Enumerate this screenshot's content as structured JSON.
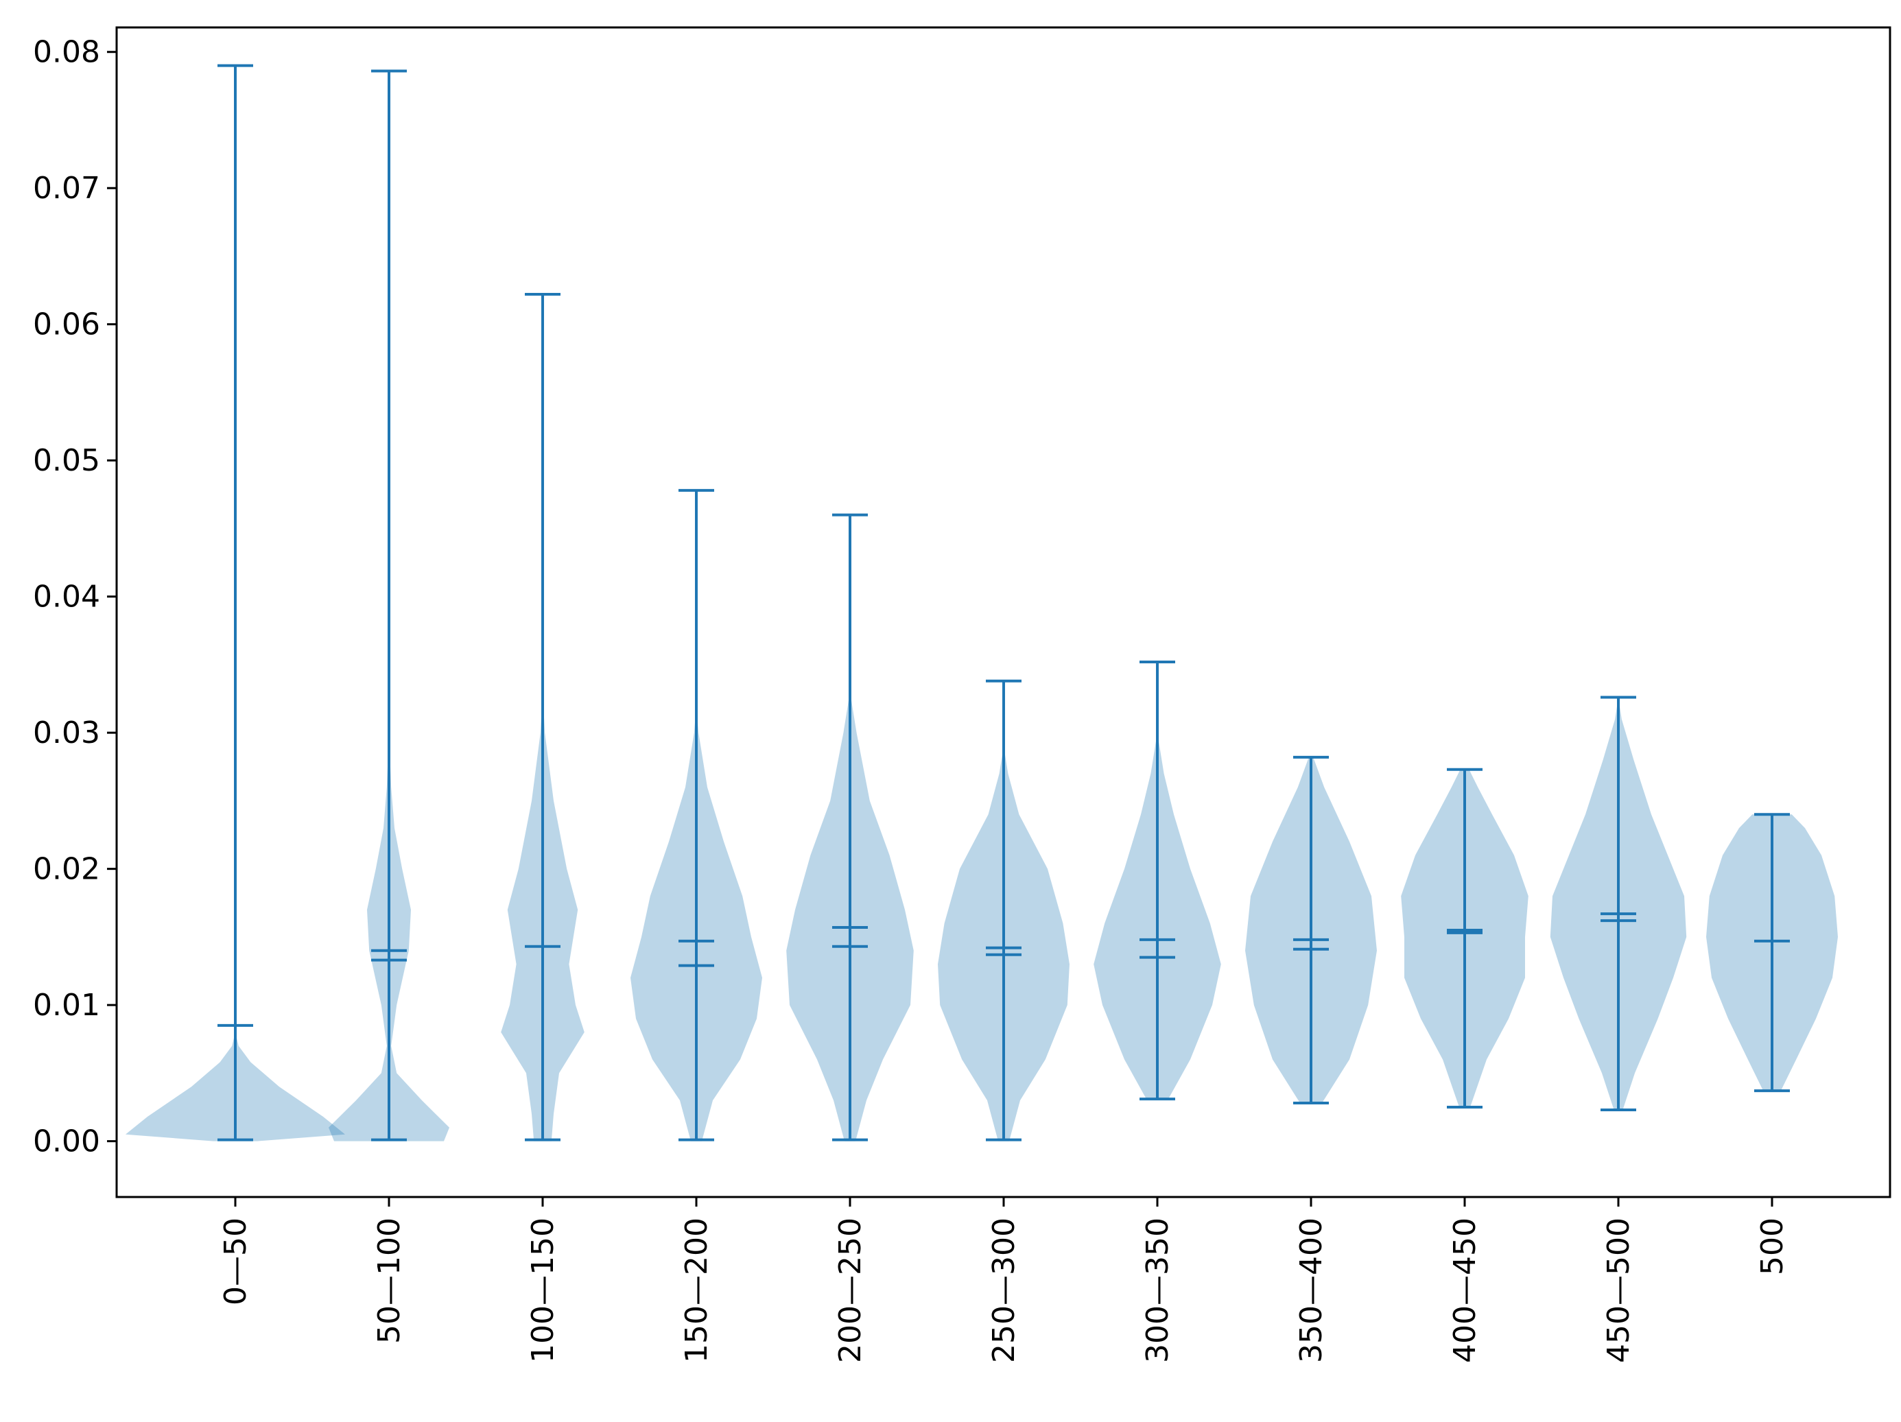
{
  "chart_data": {
    "type": "violin",
    "categories": [
      "0—50",
      "50—100",
      "100—150",
      "150—200",
      "200—250",
      "250—300",
      "300—350",
      "350—400",
      "400—450",
      "450—500",
      "500"
    ],
    "ylim": [
      -0.0041,
      0.0818
    ],
    "yticks": [
      0.0,
      0.01,
      0.02,
      0.03,
      0.04,
      0.05,
      0.06,
      0.07,
      0.08
    ],
    "ytick_labels": [
      "0.00",
      "0.01",
      "0.02",
      "0.03",
      "0.04",
      "0.05",
      "0.06",
      "0.07",
      "0.08"
    ],
    "title": "",
    "xlabel": "",
    "ylabel": "",
    "grid": false,
    "colors": {
      "body": "#1f77b4",
      "body_alpha": 0.3,
      "lines": "#1f77b4"
    },
    "violins": [
      {
        "min": 0.0001,
        "max": 0.079,
        "mean": 0.0085,
        "median": null,
        "profile": [
          [
            0.0,
            0.2
          ],
          [
            0.0005,
            1.0
          ],
          [
            0.0018,
            0.8
          ],
          [
            0.004,
            0.4
          ],
          [
            0.0058,
            0.14
          ],
          [
            0.007,
            0.03
          ],
          [
            0.008,
            0.0
          ]
        ]
      },
      {
        "min": 0.0001,
        "max": 0.0786,
        "mean": 0.014,
        "median": 0.0133,
        "profile": [
          [
            0.0,
            0.5
          ],
          [
            0.001,
            0.55
          ],
          [
            0.003,
            0.3
          ],
          [
            0.005,
            0.07
          ],
          [
            0.007,
            0.02
          ],
          [
            0.01,
            0.07
          ],
          [
            0.014,
            0.18
          ],
          [
            0.017,
            0.2
          ],
          [
            0.02,
            0.12
          ],
          [
            0.023,
            0.05
          ],
          [
            0.026,
            0.02
          ],
          [
            0.03,
            0.0
          ]
        ]
      },
      {
        "min": 0.0001,
        "max": 0.0622,
        "mean": 0.0143,
        "median": null,
        "profile": [
          [
            0.0,
            0.08
          ],
          [
            0.002,
            0.1
          ],
          [
            0.005,
            0.15
          ],
          [
            0.008,
            0.38
          ],
          [
            0.01,
            0.3
          ],
          [
            0.013,
            0.24
          ],
          [
            0.017,
            0.32
          ],
          [
            0.02,
            0.22
          ],
          [
            0.025,
            0.1
          ],
          [
            0.03,
            0.02
          ],
          [
            0.033,
            0.0
          ]
        ]
      },
      {
        "min": 0.0001,
        "max": 0.0478,
        "mean": 0.0147,
        "median": 0.0129,
        "profile": [
          [
            0.0,
            0.05
          ],
          [
            0.003,
            0.15
          ],
          [
            0.006,
            0.4
          ],
          [
            0.009,
            0.55
          ],
          [
            0.012,
            0.6
          ],
          [
            0.015,
            0.5
          ],
          [
            0.018,
            0.42
          ],
          [
            0.022,
            0.25
          ],
          [
            0.026,
            0.1
          ],
          [
            0.03,
            0.02
          ],
          [
            0.032,
            0.0
          ]
        ]
      },
      {
        "min": 0.0001,
        "max": 0.046,
        "mean": 0.0157,
        "median": 0.0143,
        "profile": [
          [
            0.0,
            0.05
          ],
          [
            0.003,
            0.15
          ],
          [
            0.006,
            0.3
          ],
          [
            0.01,
            0.55
          ],
          [
            0.014,
            0.58
          ],
          [
            0.017,
            0.5
          ],
          [
            0.021,
            0.36
          ],
          [
            0.025,
            0.18
          ],
          [
            0.03,
            0.06
          ],
          [
            0.033,
            0.0
          ]
        ]
      },
      {
        "min": 0.0001,
        "max": 0.0338,
        "mean": 0.0142,
        "median": 0.0137,
        "profile": [
          [
            0.0,
            0.05
          ],
          [
            0.003,
            0.15
          ],
          [
            0.006,
            0.38
          ],
          [
            0.01,
            0.58
          ],
          [
            0.013,
            0.6
          ],
          [
            0.016,
            0.54
          ],
          [
            0.02,
            0.4
          ],
          [
            0.024,
            0.14
          ],
          [
            0.027,
            0.04
          ],
          [
            0.029,
            0.0
          ]
        ]
      },
      {
        "min": 0.0031,
        "max": 0.0352,
        "mean": 0.0148,
        "median": 0.0135,
        "profile": [
          [
            0.0031,
            0.1
          ],
          [
            0.006,
            0.3
          ],
          [
            0.01,
            0.5
          ],
          [
            0.013,
            0.58
          ],
          [
            0.016,
            0.48
          ],
          [
            0.02,
            0.3
          ],
          [
            0.024,
            0.15
          ],
          [
            0.027,
            0.06
          ],
          [
            0.029,
            0.02
          ],
          [
            0.03,
            0.0
          ]
        ]
      },
      {
        "min": 0.0028,
        "max": 0.0282,
        "mean": 0.0148,
        "median": 0.0141,
        "profile": [
          [
            0.0028,
            0.1
          ],
          [
            0.006,
            0.35
          ],
          [
            0.01,
            0.52
          ],
          [
            0.014,
            0.6
          ],
          [
            0.018,
            0.55
          ],
          [
            0.022,
            0.35
          ],
          [
            0.026,
            0.12
          ],
          [
            0.0282,
            0.02
          ]
        ]
      },
      {
        "min": 0.0025,
        "max": 0.0273,
        "mean": 0.0155,
        "median": 0.0153,
        "profile": [
          [
            0.0025,
            0.05
          ],
          [
            0.006,
            0.2
          ],
          [
            0.009,
            0.4
          ],
          [
            0.012,
            0.55
          ],
          [
            0.015,
            0.55
          ],
          [
            0.018,
            0.58
          ],
          [
            0.021,
            0.45
          ],
          [
            0.024,
            0.25
          ],
          [
            0.026,
            0.12
          ],
          [
            0.0273,
            0.04
          ]
        ]
      },
      {
        "min": 0.0023,
        "max": 0.0326,
        "mean": 0.0167,
        "median": 0.0162,
        "profile": [
          [
            0.0023,
            0.04
          ],
          [
            0.005,
            0.15
          ],
          [
            0.009,
            0.36
          ],
          [
            0.012,
            0.5
          ],
          [
            0.015,
            0.62
          ],
          [
            0.018,
            0.6
          ],
          [
            0.021,
            0.45
          ],
          [
            0.024,
            0.3
          ],
          [
            0.028,
            0.14
          ],
          [
            0.031,
            0.03
          ],
          [
            0.0326,
            0.0
          ]
        ]
      },
      {
        "min": 0.0037,
        "max": 0.024,
        "mean": 0.0147,
        "median": null,
        "profile": [
          [
            0.0037,
            0.08
          ],
          [
            0.006,
            0.22
          ],
          [
            0.009,
            0.4
          ],
          [
            0.012,
            0.55
          ],
          [
            0.015,
            0.6
          ],
          [
            0.018,
            0.57
          ],
          [
            0.021,
            0.45
          ],
          [
            0.023,
            0.3
          ],
          [
            0.024,
            0.18
          ]
        ]
      }
    ]
  }
}
